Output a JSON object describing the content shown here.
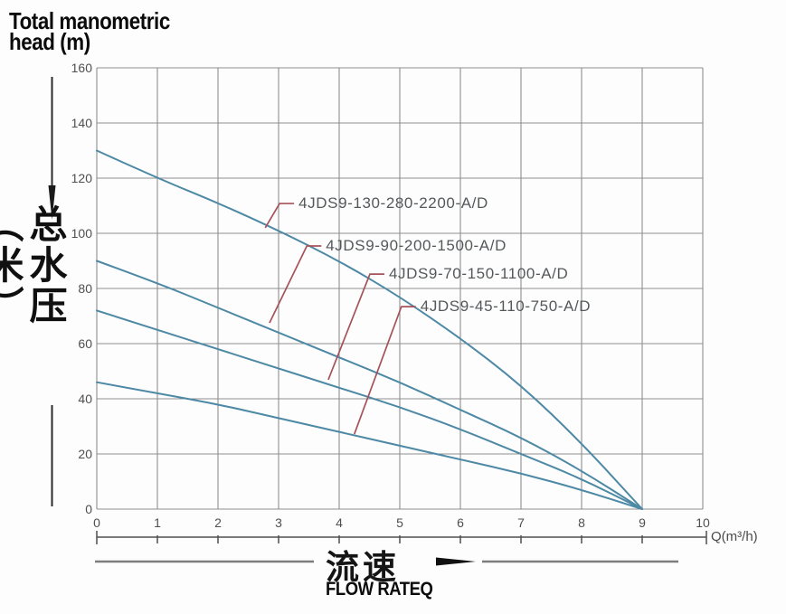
{
  "title": {
    "line1": "Total manometric",
    "line2": "head (m)"
  },
  "y_axis": {
    "unit_cn": "总水压（米）"
  },
  "x_axis": {
    "caption_cn": "流速",
    "caption_en": "FLOW RATEQ",
    "unit_label": "Q(m³/h)"
  },
  "colors": {
    "curve": "#4d89a5",
    "leader": "#a5525a",
    "grid": "#8e8e8e",
    "ruler": "#4f4f4f",
    "caption_line": "#7d7d7d",
    "ink": "#111111"
  },
  "chart_data": {
    "type": "line",
    "title": "Total manometric head (m)",
    "xlabel": "流速 FLOW RATEQ — Q(m³/h)",
    "ylabel": "总水压（米） Total manometric head (m)",
    "xlim": [
      0,
      10
    ],
    "ylim": [
      0,
      160
    ],
    "grid": true,
    "x_tick_labels": [
      "0",
      "1",
      "2",
      "3",
      "4",
      "5",
      "6",
      "7",
      "8",
      "9",
      "10"
    ],
    "y_tick_labels": [
      "160",
      "140",
      "120",
      "100",
      "80",
      "60",
      "40",
      "20",
      "0"
    ],
    "x": [
      0,
      1,
      2,
      3,
      4,
      5,
      6,
      7,
      8,
      9
    ],
    "series": [
      {
        "name": "4JDS9-130-280-2200-A/D",
        "values": [
          130,
          120,
          111,
          101,
          90,
          77,
          62,
          45,
          24,
          0
        ]
      },
      {
        "name": "4JDS9-90-200-1500-A/D",
        "values": [
          90,
          82,
          73,
          64,
          55,
          46,
          36,
          26,
          14,
          0
        ]
      },
      {
        "name": "4JDS9-70-150-1100-A/D",
        "values": [
          72,
          65,
          58,
          51,
          44,
          37,
          29,
          20,
          11,
          0
        ]
      },
      {
        "name": "4JDS9-45-110-750-A/D",
        "values": [
          46,
          42,
          38,
          33,
          28,
          23,
          18,
          13,
          7,
          0
        ]
      }
    ],
    "annotations": [
      {
        "label": "4JDS9-130-280-2200-A/D",
        "text_q": 3.33,
        "text_head": 110.8,
        "touch_q": 2.78,
        "touch_head": 102.0
      },
      {
        "label": "4JDS9-90-200-1500-A/D",
        "text_q": 3.78,
        "text_head": 95.4,
        "touch_q": 2.85,
        "touch_head": 67.5
      },
      {
        "label": "4JDS9-70-150-1100-A/D",
        "text_q": 4.82,
        "text_head": 85.2,
        "touch_q": 3.82,
        "touch_head": 46.9
      },
      {
        "label": "4JDS9-45-110-750-A/D",
        "text_q": 5.34,
        "text_head": 73.4,
        "touch_q": 4.25,
        "touch_head": 27.2
      }
    ]
  }
}
